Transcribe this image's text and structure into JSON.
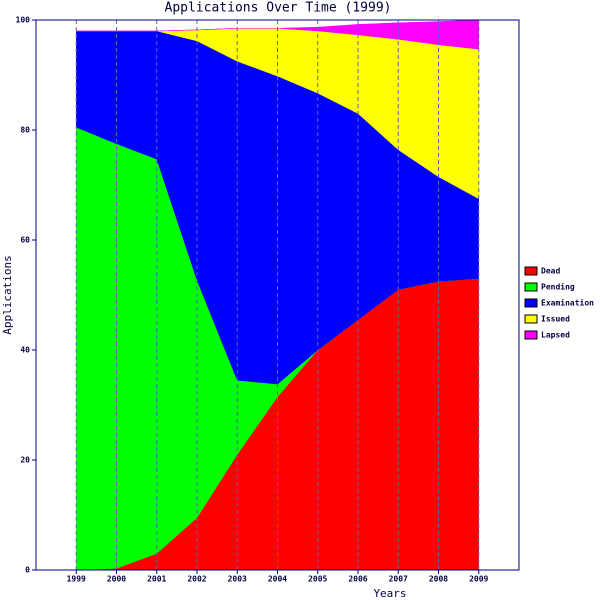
{
  "chart_data": {
    "type": "stacked_area",
    "title": "Applications Over Time (1999)",
    "x_label": "Years",
    "y_label": "Applications",
    "x": [
      1999,
      2000,
      2001,
      2002,
      2003,
      2004,
      2005,
      2006,
      2007,
      2008,
      2009
    ],
    "series": [
      {
        "name": "Dead",
        "color": "#ff0000",
        "values": [
          0,
          0.3,
          3,
          9.5,
          21,
          31.5,
          40,
          45.5,
          51,
          52.5,
          53
        ]
      },
      {
        "name": "Pending",
        "color": "#00ff00",
        "values": [
          80.5,
          77.2,
          71.7,
          43.2,
          13.5,
          2.3,
          0,
          0,
          0,
          0,
          0
        ]
      },
      {
        "name": "Examination",
        "color": "#0000ff",
        "values": [
          17.5,
          20.5,
          23.3,
          43.5,
          58,
          56,
          46.7,
          37.5,
          25.4,
          19,
          14.5
        ]
      },
      {
        "name": "Issued",
        "color": "#ffff00",
        "values": [
          0,
          0,
          0,
          2,
          6,
          8.7,
          11.3,
          14.3,
          20.1,
          24,
          27.2
        ]
      },
      {
        "name": "Lapsed",
        "color": "#ff00ff",
        "values": [
          0,
          0,
          0,
          0,
          0,
          0,
          0.7,
          1.9,
          3,
          4.2,
          5.3
        ]
      }
    ],
    "xlim": [
      1998,
      2010
    ],
    "ylim": [
      0,
      100
    ],
    "xticks": [
      1999,
      2000,
      2001,
      2002,
      2003,
      2004,
      2005,
      2006,
      2007,
      2008,
      2009
    ],
    "yticks": [
      0,
      20,
      40,
      60,
      80,
      100
    ],
    "grid": "x",
    "legend": "right"
  }
}
